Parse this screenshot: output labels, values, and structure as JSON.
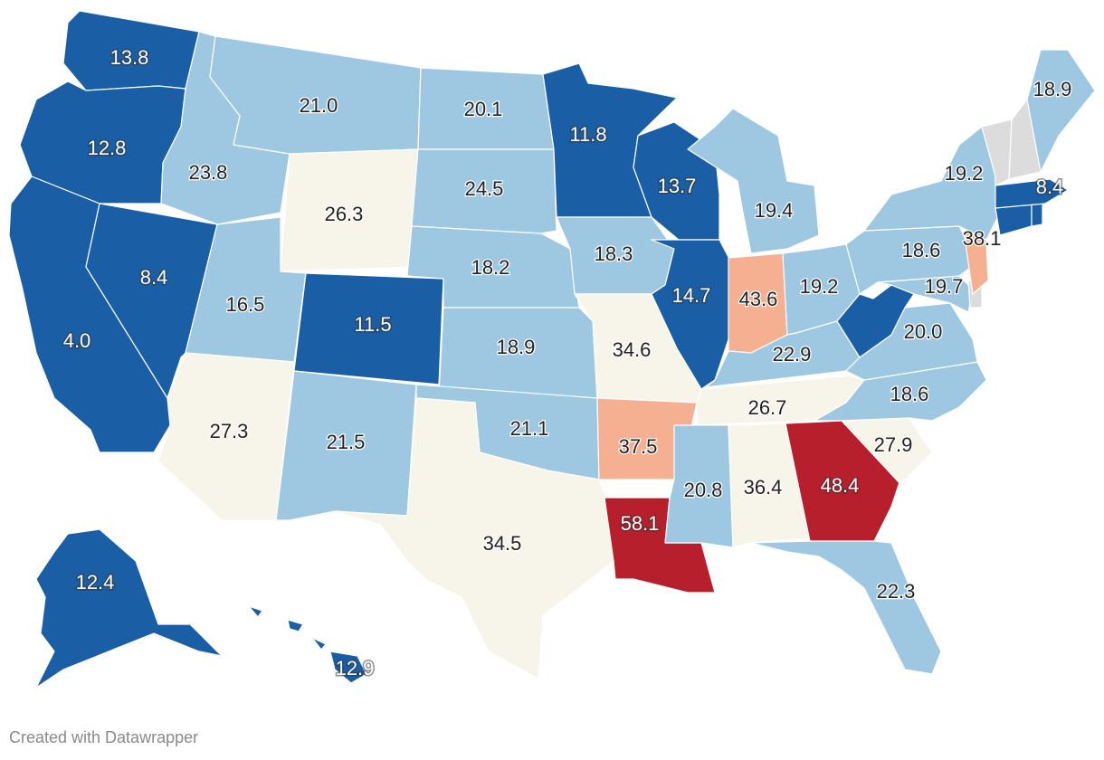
{
  "footer": {
    "credit": "Created with Datawrapper"
  },
  "legend_colors": {
    "dark_blue": "#1a5fa6",
    "light_blue": "#9ec8e2",
    "neutral": "#f7f5ea",
    "light_red": "#f5b091",
    "dark_red": "#b81f2c",
    "no_data": "#dcdcdc"
  },
  "states": [
    {
      "id": "WA",
      "value": "13.8",
      "color": "dark_blue"
    },
    {
      "id": "OR",
      "value": "12.8",
      "color": "dark_blue"
    },
    {
      "id": "CA",
      "value": "4.0",
      "color": "dark_blue"
    },
    {
      "id": "NV",
      "value": "8.4",
      "color": "dark_blue"
    },
    {
      "id": "ID",
      "value": "23.8",
      "color": "light_blue"
    },
    {
      "id": "MT",
      "value": "21.0",
      "color": "light_blue"
    },
    {
      "id": "WY",
      "value": "26.3",
      "color": "neutral"
    },
    {
      "id": "UT",
      "value": "16.5",
      "color": "light_blue"
    },
    {
      "id": "AZ",
      "value": "27.3",
      "color": "neutral"
    },
    {
      "id": "CO",
      "value": "11.5",
      "color": "dark_blue"
    },
    {
      "id": "NM",
      "value": "21.5",
      "color": "light_blue"
    },
    {
      "id": "ND",
      "value": "20.1",
      "color": "light_blue"
    },
    {
      "id": "SD",
      "value": "24.5",
      "color": "light_blue"
    },
    {
      "id": "NE",
      "value": "18.2",
      "color": "light_blue"
    },
    {
      "id": "KS",
      "value": "18.9",
      "color": "light_blue"
    },
    {
      "id": "OK",
      "value": "21.1",
      "color": "light_blue"
    },
    {
      "id": "TX",
      "value": "34.5",
      "color": "neutral"
    },
    {
      "id": "MN",
      "value": "11.8",
      "color": "dark_blue"
    },
    {
      "id": "IA",
      "value": "18.3",
      "color": "light_blue"
    },
    {
      "id": "MO",
      "value": "34.6",
      "color": "neutral"
    },
    {
      "id": "AR",
      "value": "37.5",
      "color": "light_red"
    },
    {
      "id": "LA",
      "value": "58.1",
      "color": "dark_red"
    },
    {
      "id": "WI",
      "value": "13.7",
      "color": "dark_blue"
    },
    {
      "id": "IL",
      "value": "14.7",
      "color": "dark_blue"
    },
    {
      "id": "MI",
      "value": "19.4",
      "color": "light_blue"
    },
    {
      "id": "IN",
      "value": "43.6",
      "color": "light_red"
    },
    {
      "id": "OH",
      "value": "19.2",
      "color": "light_blue"
    },
    {
      "id": "KY",
      "value": "22.9",
      "color": "light_blue"
    },
    {
      "id": "TN",
      "value": "26.7",
      "color": "neutral"
    },
    {
      "id": "MS",
      "value": "20.8",
      "color": "light_blue"
    },
    {
      "id": "AL",
      "value": "36.4",
      "color": "neutral"
    },
    {
      "id": "GA",
      "value": "48.4",
      "color": "dark_red"
    },
    {
      "id": "FL",
      "value": "22.3",
      "color": "light_blue"
    },
    {
      "id": "SC",
      "value": "27.9",
      "color": "neutral"
    },
    {
      "id": "NC",
      "value": "18.6",
      "color": "light_blue"
    },
    {
      "id": "VA",
      "value": "20.0",
      "color": "light_blue"
    },
    {
      "id": "WV",
      "value": "",
      "color": "dark_blue"
    },
    {
      "id": "MD",
      "value": "19.7",
      "color": "light_blue"
    },
    {
      "id": "DE",
      "value": "",
      "color": "no_data"
    },
    {
      "id": "PA",
      "value": "18.6",
      "color": "light_blue"
    },
    {
      "id": "NJ",
      "value": "38.1",
      "color": "light_red"
    },
    {
      "id": "NY",
      "value": "19.2",
      "color": "light_blue"
    },
    {
      "id": "CT",
      "value": "",
      "color": "dark_blue"
    },
    {
      "id": "RI",
      "value": "",
      "color": "dark_blue"
    },
    {
      "id": "MA",
      "value": "8.4",
      "color": "dark_blue"
    },
    {
      "id": "VT",
      "value": "",
      "color": "no_data"
    },
    {
      "id": "NH",
      "value": "",
      "color": "no_data"
    },
    {
      "id": "ME",
      "value": "18.9",
      "color": "light_blue"
    },
    {
      "id": "AK",
      "value": "12.4",
      "color": "dark_blue"
    },
    {
      "id": "HI",
      "value": "12.9",
      "color": "dark_blue"
    }
  ]
}
